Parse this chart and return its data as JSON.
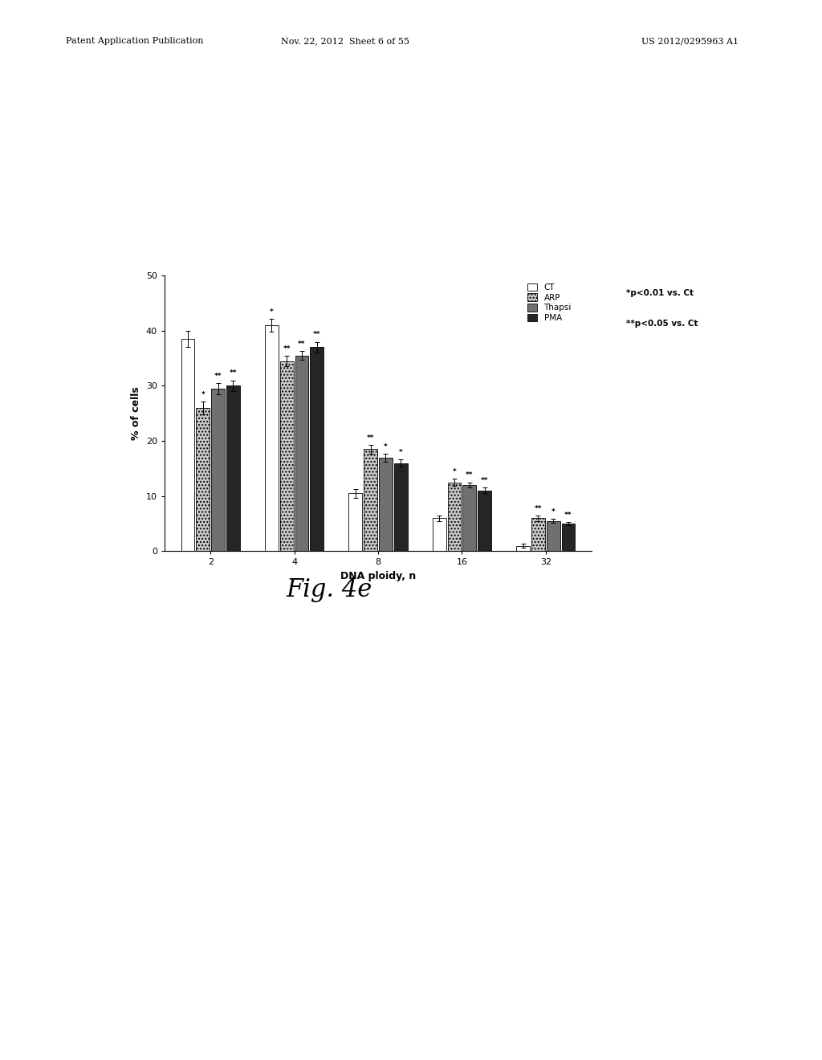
{
  "xlabel": "DNA ploidy, n",
  "ylabel": "% of cells",
  "xtick_labels": [
    "2",
    "4",
    "8",
    "16",
    "32"
  ],
  "yticks": [
    0,
    10,
    20,
    30,
    40,
    50
  ],
  "ylim": [
    0,
    50
  ],
  "groups": [
    "2",
    "4",
    "8",
    "16",
    "32"
  ],
  "series": [
    "CT",
    "ARP",
    "Thapsi",
    "PMA"
  ],
  "colors": [
    "white",
    "#c8c8c8",
    "#707070",
    "#252525"
  ],
  "hatch": [
    "",
    "....",
    "",
    ""
  ],
  "bar_values": {
    "CT": [
      38.5,
      41.0,
      10.5,
      6.0,
      1.0
    ],
    "ARP": [
      26.0,
      34.5,
      18.5,
      12.5,
      6.0
    ],
    "Thapsi": [
      29.5,
      35.5,
      17.0,
      12.0,
      5.5
    ],
    "PMA": [
      30.0,
      37.0,
      16.0,
      11.0,
      5.0
    ]
  },
  "error_values": {
    "CT": [
      1.5,
      1.2,
      0.8,
      0.5,
      0.3
    ],
    "ARP": [
      1.2,
      1.0,
      0.8,
      0.6,
      0.5
    ],
    "Thapsi": [
      1.0,
      0.8,
      0.7,
      0.5,
      0.4
    ],
    "PMA": [
      1.0,
      1.0,
      0.6,
      0.5,
      0.3
    ]
  },
  "annotations": {
    "2": {
      "ARP": "*",
      "Thapsi": "**",
      "PMA": "**"
    },
    "4": {
      "CT": "*",
      "ARP": "**",
      "Thapsi": "**",
      "PMA": "**"
    },
    "8": {
      "ARP": "**",
      "Thapsi": "*",
      "PMA": "*"
    },
    "16": {
      "ARP": "*",
      "Thapsi": "**",
      "PMA": "**"
    },
    "32": {
      "ARP": "**",
      "Thapsi": "*",
      "PMA": "**"
    }
  },
  "legend_entries": [
    "CT",
    "ARP",
    "Thapsi",
    "PMA"
  ],
  "legend_colors": [
    "white",
    "#c8c8c8",
    "#707070",
    "#252525"
  ],
  "legend_hatch": [
    "",
    "....",
    "",
    ""
  ],
  "stat_text1": "*p<0.01 vs. Ct",
  "stat_text2": "**p<0.05 vs. Ct",
  "header_left": "Patent Application Publication",
  "header_mid": "Nov. 22, 2012  Sheet 6 of 55",
  "header_right": "US 2012/0295963 A1",
  "fig_label": "Fig. 4e"
}
